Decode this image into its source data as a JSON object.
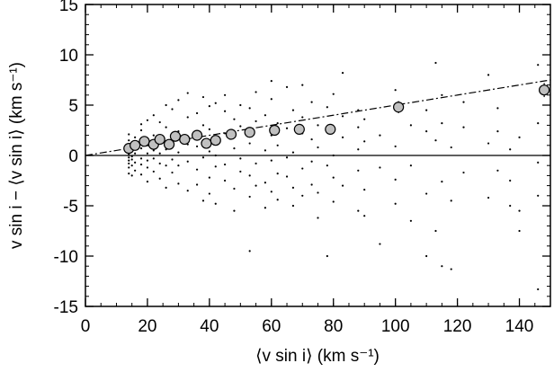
{
  "chart_data": {
    "type": "scatter",
    "xlabel": "⟨v sin i⟩ (km s⁻¹)",
    "ylabel": "v sin i − ⟨v sin i⟩ (km s⁻¹)",
    "xlim": [
      0,
      150
    ],
    "ylim": [
      -15,
      15
    ],
    "xticks": [
      0,
      20,
      40,
      60,
      80,
      100,
      120,
      140
    ],
    "yticks": [
      -15,
      -10,
      -5,
      0,
      5,
      10,
      15
    ],
    "xminor_step": 5,
    "yminor_step": 1,
    "hline": 0,
    "fit_line": {
      "x": [
        0,
        150
      ],
      "y": [
        0,
        7.5
      ]
    },
    "points_color": "#000000",
    "points": [
      [
        14,
        -0.5
      ],
      [
        14,
        0.3
      ],
      [
        14,
        -1.2
      ],
      [
        14,
        0.8
      ],
      [
        14,
        -0.2
      ],
      [
        14,
        1.5
      ],
      [
        14,
        -1.8
      ],
      [
        14,
        0.1
      ],
      [
        14,
        -0.8
      ],
      [
        14,
        2.1
      ],
      [
        15,
        -0.4
      ],
      [
        15,
        0.6
      ],
      [
        15,
        -1.0
      ],
      [
        15,
        1.2
      ],
      [
        15,
        -0.1
      ],
      [
        15,
        -2.0
      ],
      [
        15,
        0.4
      ],
      [
        16,
        0.2
      ],
      [
        16,
        -0.7
      ],
      [
        16,
        1.8
      ],
      [
        16,
        -1.5
      ],
      [
        16,
        0.9
      ],
      [
        18,
        -0.3
      ],
      [
        18,
        2.5
      ],
      [
        18,
        -1.9
      ],
      [
        18,
        0.7
      ],
      [
        18,
        3.1
      ],
      [
        18,
        -0.9
      ],
      [
        20,
        1.0
      ],
      [
        20,
        -1.2
      ],
      [
        20,
        3.5
      ],
      [
        20,
        -0.5
      ],
      [
        20,
        0.2
      ],
      [
        20,
        -2.6
      ],
      [
        22,
        0.5
      ],
      [
        22,
        2.0
      ],
      [
        22,
        -1.6
      ],
      [
        22,
        4.0
      ],
      [
        22,
        -0.3
      ],
      [
        24,
        1.4
      ],
      [
        24,
        -2.3
      ],
      [
        24,
        0.2
      ],
      [
        24,
        3.3
      ],
      [
        24,
        -0.8
      ],
      [
        26,
        -1.0
      ],
      [
        26,
        2.8
      ],
      [
        26,
        0.6
      ],
      [
        26,
        -3.2
      ],
      [
        26,
        5.0
      ],
      [
        28,
        1.9
      ],
      [
        28,
        -0.4
      ],
      [
        28,
        4.6
      ],
      [
        28,
        -1.7
      ],
      [
        28,
        0.8
      ],
      [
        30,
        2.4
      ],
      [
        30,
        -2.8
      ],
      [
        30,
        0.3
      ],
      [
        30,
        5.5
      ],
      [
        30,
        -1.0
      ],
      [
        33,
        1.1
      ],
      [
        33,
        -3.5
      ],
      [
        33,
        3.8
      ],
      [
        33,
        -0.6
      ],
      [
        33,
        6.2
      ],
      [
        36,
        0.9
      ],
      [
        36,
        -1.4
      ],
      [
        36,
        4.2
      ],
      [
        36,
        -2.9
      ],
      [
        36,
        2.1
      ],
      [
        38,
        -0.2
      ],
      [
        38,
        3.0
      ],
      [
        38,
        -4.5
      ],
      [
        38,
        1.5
      ],
      [
        38,
        5.8
      ],
      [
        40,
        0.4
      ],
      [
        40,
        -2.2
      ],
      [
        40,
        2.6
      ],
      [
        40,
        -3.8
      ],
      [
        40,
        4.9
      ],
      [
        42,
        1.3
      ],
      [
        42,
        -1.1
      ],
      [
        42,
        5.2
      ],
      [
        42,
        -4.8
      ],
      [
        42,
        0.0
      ],
      [
        45,
        2.2
      ],
      [
        45,
        -2.5
      ],
      [
        45,
        4.4
      ],
      [
        45,
        -0.9
      ],
      [
        45,
        6.0
      ],
      [
        48,
        0.7
      ],
      [
        48,
        -3.3
      ],
      [
        48,
        3.6
      ],
      [
        48,
        -5.5
      ],
      [
        48,
        1.9
      ],
      [
        50,
        2.9
      ],
      [
        50,
        -1.6
      ],
      [
        50,
        5.0
      ],
      [
        50,
        -0.3
      ],
      [
        53,
        1.2
      ],
      [
        53,
        -4.1
      ],
      [
        53,
        4.7
      ],
      [
        53,
        -2.0
      ],
      [
        53,
        -9.5
      ],
      [
        55,
        3.4
      ],
      [
        55,
        -0.8
      ],
      [
        55,
        6.3
      ],
      [
        55,
        -3.0
      ],
      [
        58,
        0.5
      ],
      [
        58,
        -2.7
      ],
      [
        58,
        4.0
      ],
      [
        58,
        -5.2
      ],
      [
        60,
        2.0
      ],
      [
        60,
        -0.5
      ],
      [
        60,
        5.6
      ],
      [
        60,
        -3.6
      ],
      [
        60,
        7.4
      ],
      [
        62,
        1.0
      ],
      [
        62,
        -4.4
      ],
      [
        62,
        3.2
      ],
      [
        62,
        -1.8
      ],
      [
        65,
        2.7
      ],
      [
        65,
        -2.1
      ],
      [
        65,
        6.8
      ],
      [
        65,
        -0.2
      ],
      [
        67,
        0.3
      ],
      [
        67,
        -5.0
      ],
      [
        67,
        4.5
      ],
      [
        67,
        -3.2
      ],
      [
        70,
        3.8
      ],
      [
        70,
        -1.3
      ],
      [
        70,
        2.2
      ],
      [
        70,
        -4.0
      ],
      [
        70,
        7.0
      ],
      [
        73,
        1.6
      ],
      [
        73,
        -2.9
      ],
      [
        73,
        5.3
      ],
      [
        73,
        -0.6
      ],
      [
        75,
        0.8
      ],
      [
        75,
        -3.7
      ],
      [
        75,
        3.0
      ],
      [
        75,
        -6.2
      ],
      [
        78,
        2.5
      ],
      [
        78,
        -1.0
      ],
      [
        78,
        4.8
      ],
      [
        78,
        -10.0
      ],
      [
        80,
        0.0
      ],
      [
        80,
        -4.6
      ],
      [
        80,
        6.1
      ],
      [
        80,
        -2.2
      ],
      [
        83,
        1.8
      ],
      [
        83,
        -3.0
      ],
      [
        83,
        3.9
      ],
      [
        83,
        8.2
      ],
      [
        88,
        0.6
      ],
      [
        88,
        -5.5
      ],
      [
        88,
        2.8
      ],
      [
        88,
        -1.5
      ],
      [
        88,
        4.5
      ],
      [
        90,
        1.4
      ],
      [
        90,
        -6.0
      ],
      [
        90,
        -3.4
      ],
      [
        90,
        3.6
      ],
      [
        95,
        -8.8
      ],
      [
        95,
        2.0
      ],
      [
        95,
        -1.2
      ],
      [
        100,
        0.9
      ],
      [
        100,
        -4.8
      ],
      [
        100,
        6.5
      ],
      [
        100,
        -2.4
      ],
      [
        105,
        3.0
      ],
      [
        105,
        -1.0
      ],
      [
        105,
        -6.5
      ],
      [
        110,
        2.4
      ],
      [
        110,
        -10.0
      ],
      [
        110,
        -3.8
      ],
      [
        110,
        4.5
      ],
      [
        113,
        1.5
      ],
      [
        113,
        -7.5
      ],
      [
        113,
        9.2
      ],
      [
        115,
        3.2
      ],
      [
        115,
        -2.6
      ],
      [
        115,
        -11.0
      ],
      [
        115,
        6.0
      ],
      [
        118,
        -4.5
      ],
      [
        118,
        0.8
      ],
      [
        118,
        -11.3
      ],
      [
        122,
        2.8
      ],
      [
        122,
        -1.7
      ],
      [
        122,
        5.3
      ],
      [
        130,
        -4.2
      ],
      [
        130,
        1.2
      ],
      [
        130,
        8.0
      ],
      [
        133,
        2.4
      ],
      [
        133,
        -1.5
      ],
      [
        133,
        4.7
      ],
      [
        137,
        -2.5
      ],
      [
        137,
        0.6
      ],
      [
        137,
        -5.0
      ],
      [
        140,
        1.8
      ],
      [
        140,
        -5.5
      ],
      [
        140,
        -7.5
      ],
      [
        146,
        -0.7
      ],
      [
        146,
        9.0
      ],
      [
        146,
        -13.3
      ],
      [
        146,
        3.2
      ],
      [
        146,
        -4.0
      ]
    ],
    "means": {
      "color": "#c0c0c0",
      "x": [
        14,
        16,
        19,
        22,
        24,
        27,
        29,
        32,
        36,
        39,
        42,
        47,
        53,
        61,
        69,
        79,
        101,
        148
      ],
      "y": [
        0.7,
        1.0,
        1.4,
        1.1,
        1.6,
        1.1,
        1.9,
        1.6,
        2.0,
        1.2,
        1.5,
        2.1,
        2.3,
        2.5,
        2.6,
        2.6,
        4.8,
        6.5
      ],
      "errors": [
        0.2,
        0.2,
        0.2,
        0.2,
        0.2,
        0.2,
        0.2,
        0.2,
        0.2,
        0.2,
        0.2,
        0.2,
        0.3,
        0.3,
        0.3,
        0.3,
        0.6,
        0.7
      ]
    }
  }
}
